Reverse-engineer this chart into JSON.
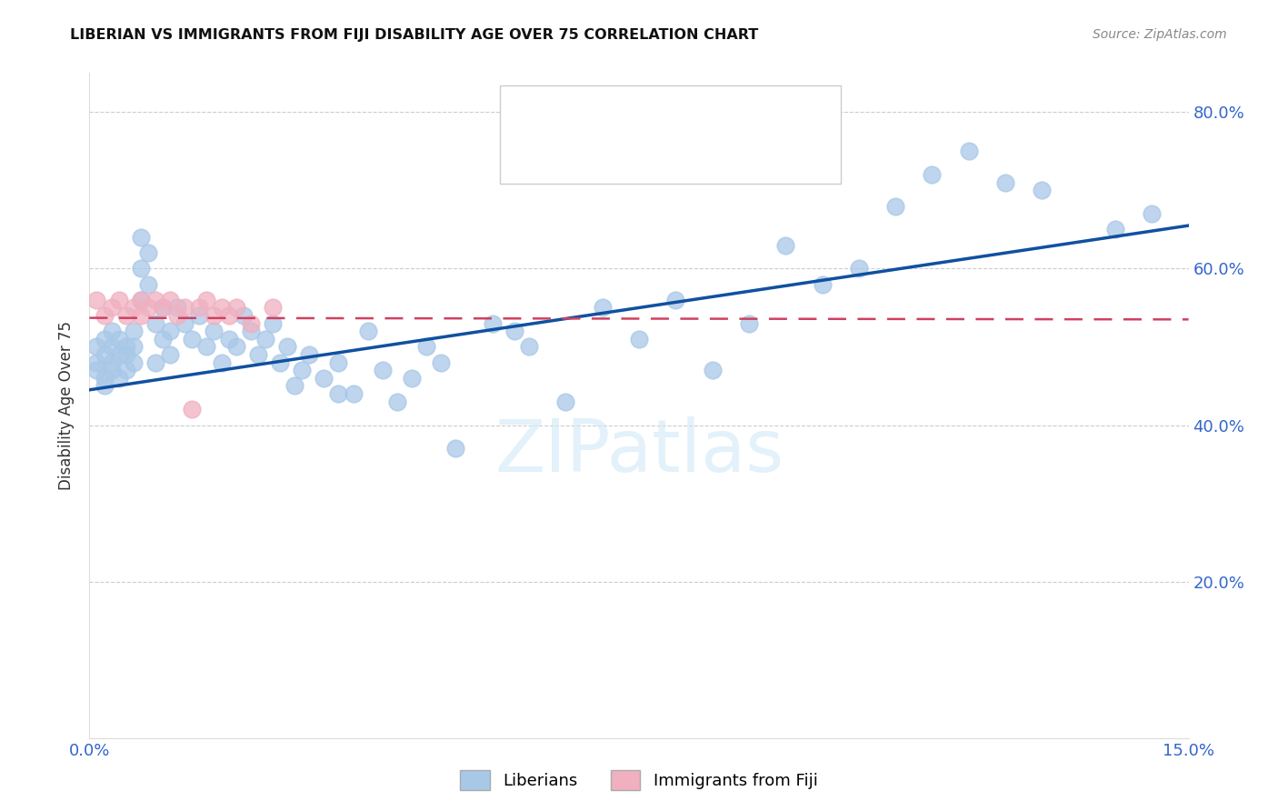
{
  "title": "LIBERIAN VS IMMIGRANTS FROM FIJI DISABILITY AGE OVER 75 CORRELATION CHART",
  "source": "Source: ZipAtlas.com",
  "ylabel": "Disability Age Over 75",
  "xlim": [
    0.0,
    0.15
  ],
  "ylim": [
    0.0,
    0.85
  ],
  "blue_color": "#a8c8e8",
  "pink_color": "#f0b0c0",
  "line_blue": "#1050a0",
  "line_pink": "#d04060",
  "watermark": "ZIPatlas",
  "liberian_x": [
    0.001,
    0.001,
    0.001,
    0.002,
    0.002,
    0.002,
    0.002,
    0.003,
    0.003,
    0.003,
    0.003,
    0.004,
    0.004,
    0.004,
    0.005,
    0.005,
    0.005,
    0.006,
    0.006,
    0.006,
    0.007,
    0.007,
    0.007,
    0.008,
    0.008,
    0.009,
    0.009,
    0.01,
    0.01,
    0.011,
    0.011,
    0.012,
    0.013,
    0.014,
    0.015,
    0.016,
    0.017,
    0.018,
    0.019,
    0.02,
    0.021,
    0.022,
    0.023,
    0.024,
    0.025,
    0.026,
    0.027,
    0.028,
    0.029,
    0.03,
    0.032,
    0.034,
    0.034,
    0.036,
    0.038,
    0.04,
    0.042,
    0.044,
    0.046,
    0.048,
    0.05,
    0.055,
    0.058,
    0.06,
    0.065,
    0.07,
    0.075,
    0.08,
    0.085,
    0.09,
    0.095,
    0.1,
    0.105,
    0.11,
    0.115,
    0.12,
    0.125,
    0.13,
    0.14,
    0.145
  ],
  "liberian_y": [
    0.47,
    0.48,
    0.5,
    0.46,
    0.49,
    0.51,
    0.45,
    0.48,
    0.5,
    0.52,
    0.47,
    0.49,
    0.51,
    0.46,
    0.5,
    0.47,
    0.49,
    0.52,
    0.48,
    0.5,
    0.64,
    0.6,
    0.56,
    0.62,
    0.58,
    0.53,
    0.48,
    0.55,
    0.51,
    0.52,
    0.49,
    0.55,
    0.53,
    0.51,
    0.54,
    0.5,
    0.52,
    0.48,
    0.51,
    0.5,
    0.54,
    0.52,
    0.49,
    0.51,
    0.53,
    0.48,
    0.5,
    0.45,
    0.47,
    0.49,
    0.46,
    0.44,
    0.48,
    0.44,
    0.52,
    0.47,
    0.43,
    0.46,
    0.5,
    0.48,
    0.37,
    0.53,
    0.52,
    0.5,
    0.43,
    0.55,
    0.51,
    0.56,
    0.47,
    0.53,
    0.63,
    0.58,
    0.6,
    0.68,
    0.72,
    0.75,
    0.71,
    0.7,
    0.65,
    0.67
  ],
  "fiji_x": [
    0.001,
    0.002,
    0.003,
    0.004,
    0.005,
    0.006,
    0.007,
    0.007,
    0.008,
    0.009,
    0.01,
    0.011,
    0.012,
    0.013,
    0.014,
    0.015,
    0.016,
    0.017,
    0.018,
    0.019,
    0.02,
    0.022,
    0.025
  ],
  "fiji_y": [
    0.56,
    0.54,
    0.55,
    0.56,
    0.54,
    0.55,
    0.56,
    0.54,
    0.55,
    0.56,
    0.55,
    0.56,
    0.54,
    0.55,
    0.42,
    0.55,
    0.56,
    0.54,
    0.55,
    0.54,
    0.55,
    0.53,
    0.55
  ],
  "blue_line_x0": 0.0,
  "blue_line_y0": 0.445,
  "blue_line_x1": 0.15,
  "blue_line_y1": 0.655,
  "pink_line_x0": 0.0,
  "pink_line_y0": 0.537,
  "pink_line_x1": 0.15,
  "pink_line_y1": 0.535
}
